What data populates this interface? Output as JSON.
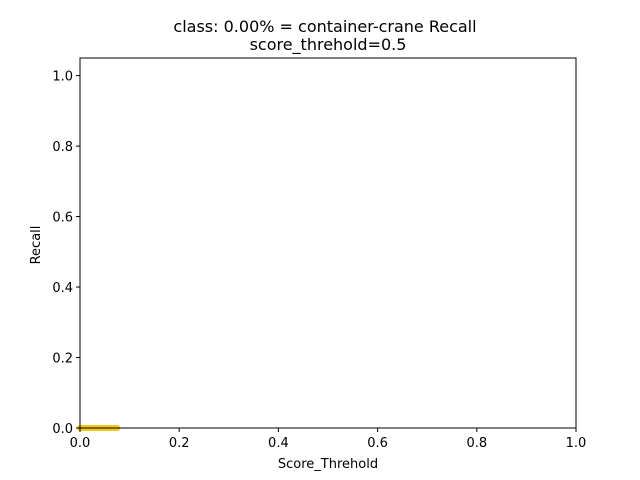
{
  "chart_data": {
    "type": "line",
    "title": "class: 0.00% = container-crane Recall",
    "subtitle": "score_threhold=0.5",
    "xlabel": "Score_Threhold",
    "ylabel": "Recall",
    "xlim": [
      0.0,
      1.0
    ],
    "ylim": [
      0.0,
      1.05
    ],
    "x_ticks": [
      "0.0",
      "0.2",
      "0.4",
      "0.6",
      "0.8",
      "1.0"
    ],
    "y_ticks": [
      "0.0",
      "0.2",
      "0.4",
      "0.6",
      "0.8",
      "1.0"
    ],
    "grid": false,
    "legend": "none",
    "series": [
      {
        "color": "#f2c90f",
        "x": [
          0.0,
          0.075
        ],
        "y": [
          0.0,
          0.0
        ]
      }
    ]
  }
}
